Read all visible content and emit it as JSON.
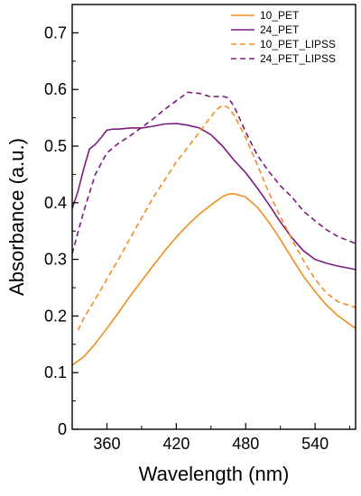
{
  "chart_data": {
    "type": "line",
    "title": "",
    "xlabel": "Wavelength (nm)",
    "ylabel": "Absorbance (a.u.)",
    "xlim": [
      330,
      575
    ],
    "ylim": [
      0,
      0.75
    ],
    "x_ticks": [
      360,
      420,
      480,
      540
    ],
    "y_ticks": [
      0,
      0.1,
      0.2,
      0.3,
      0.4,
      0.5,
      0.6,
      0.7
    ],
    "grid": false,
    "legend_position": "top-right",
    "series": [
      {
        "name": "10_PET",
        "color": "#F28C1E",
        "dash": "solid",
        "x": [
          330,
          340,
          350,
          360,
          370,
          380,
          390,
          400,
          410,
          420,
          430,
          440,
          450,
          460,
          465,
          470,
          480,
          490,
          500,
          510,
          520,
          530,
          540,
          550,
          560,
          575
        ],
        "y": [
          0.113,
          0.128,
          0.151,
          0.178,
          0.206,
          0.235,
          0.262,
          0.289,
          0.315,
          0.339,
          0.361,
          0.38,
          0.396,
          0.411,
          0.415,
          0.416,
          0.41,
          0.392,
          0.366,
          0.335,
          0.302,
          0.27,
          0.243,
          0.219,
          0.2,
          0.178
        ]
      },
      {
        "name": "24_PET",
        "color": "#7B1A7E",
        "dash": "solid",
        "x": [
          330,
          335,
          340,
          345,
          350,
          355,
          360,
          365,
          370,
          380,
          390,
          400,
          410,
          420,
          430,
          440,
          450,
          460,
          470,
          480,
          490,
          500,
          510,
          520,
          530,
          540,
          550,
          560,
          575
        ],
        "y": [
          0.39,
          0.42,
          0.46,
          0.495,
          0.503,
          0.515,
          0.528,
          0.53,
          0.53,
          0.532,
          0.532,
          0.535,
          0.539,
          0.54,
          0.537,
          0.532,
          0.52,
          0.5,
          0.475,
          0.453,
          0.426,
          0.397,
          0.366,
          0.338,
          0.315,
          0.3,
          0.293,
          0.288,
          0.282
        ]
      },
      {
        "name": "10_PET_LIPSS",
        "color": "#F28C1E",
        "dash": "dashed",
        "x": [
          335,
          340,
          350,
          360,
          370,
          380,
          390,
          400,
          410,
          420,
          430,
          440,
          450,
          455,
          460,
          465,
          470,
          480,
          490,
          500,
          510,
          520,
          530,
          540,
          550,
          560,
          575
        ],
        "y": [
          0.175,
          0.196,
          0.23,
          0.265,
          0.3,
          0.337,
          0.373,
          0.409,
          0.44,
          0.472,
          0.498,
          0.525,
          0.552,
          0.565,
          0.572,
          0.568,
          0.555,
          0.515,
          0.467,
          0.418,
          0.375,
          0.335,
          0.298,
          0.265,
          0.24,
          0.225,
          0.215
        ]
      },
      {
        "name": "24_PET_LIPSS",
        "color": "#7B1A7E",
        "dash": "dashed",
        "x": [
          330,
          340,
          350,
          360,
          370,
          380,
          390,
          400,
          410,
          420,
          430,
          440,
          450,
          460,
          465,
          470,
          480,
          490,
          500,
          510,
          520,
          530,
          540,
          550,
          560,
          575
        ],
        "y": [
          0.31,
          0.385,
          0.45,
          0.488,
          0.505,
          0.518,
          0.533,
          0.548,
          0.565,
          0.58,
          0.595,
          0.593,
          0.587,
          0.588,
          0.585,
          0.57,
          0.525,
          0.484,
          0.455,
          0.43,
          0.41,
          0.385,
          0.368,
          0.352,
          0.34,
          0.328
        ]
      }
    ]
  }
}
